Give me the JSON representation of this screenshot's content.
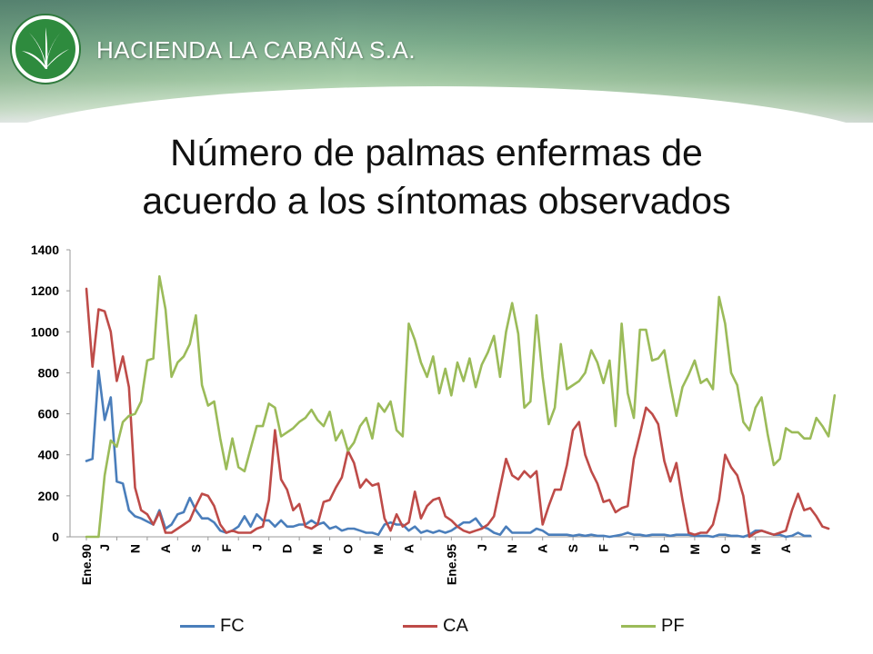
{
  "header": {
    "brand": "HACIENDA LA CABAÑA S.A.",
    "logo_icon": "palm-leaf-logo-icon"
  },
  "slide": {
    "title_line1": "Número de palmas enfermas de",
    "title_line2": "acuerdo a los síntomas observados"
  },
  "chart_data": {
    "type": "line",
    "title": "Número de palmas enfermas de acuerdo a los síntomas observados",
    "xlabel": "",
    "ylabel": "",
    "ylim": [
      0,
      1400
    ],
    "yticks": [
      0,
      200,
      400,
      600,
      800,
      1000,
      1200,
      1400
    ],
    "grid": false,
    "legend": "bottom",
    "x_tick_labels": [
      {
        "index": 0,
        "label": "Ene.90"
      },
      {
        "index": 3,
        "label": "J"
      },
      {
        "index": 8,
        "label": "N"
      },
      {
        "index": 13,
        "label": "A"
      },
      {
        "index": 18,
        "label": "S"
      },
      {
        "index": 23,
        "label": "F"
      },
      {
        "index": 28,
        "label": "J"
      },
      {
        "index": 33,
        "label": "D"
      },
      {
        "index": 38,
        "label": "M"
      },
      {
        "index": 43,
        "label": "O"
      },
      {
        "index": 48,
        "label": "M"
      },
      {
        "index": 53,
        "label": "A"
      },
      {
        "index": 60,
        "label": "Ene.95"
      },
      {
        "index": 65,
        "label": "J"
      },
      {
        "index": 70,
        "label": "N"
      },
      {
        "index": 75,
        "label": "A"
      },
      {
        "index": 80,
        "label": "S"
      },
      {
        "index": 85,
        "label": "F"
      },
      {
        "index": 90,
        "label": "J"
      },
      {
        "index": 95,
        "label": "D"
      },
      {
        "index": 100,
        "label": "M"
      },
      {
        "index": 105,
        "label": "O"
      },
      {
        "index": 110,
        "label": "M"
      },
      {
        "index": 115,
        "label": "A"
      }
    ],
    "series": [
      {
        "name": "FC",
        "color": "#4a7ebb",
        "values": [
          370,
          380,
          810,
          570,
          680,
          270,
          260,
          130,
          100,
          90,
          75,
          60,
          130,
          40,
          60,
          110,
          120,
          190,
          130,
          90,
          90,
          70,
          30,
          20,
          30,
          50,
          100,
          50,
          110,
          80,
          80,
          50,
          80,
          50,
          50,
          60,
          60,
          80,
          60,
          70,
          40,
          50,
          30,
          40,
          40,
          30,
          20,
          20,
          10,
          60,
          70,
          60,
          60,
          30,
          50,
          20,
          30,
          20,
          30,
          20,
          30,
          50,
          70,
          70,
          90,
          50,
          40,
          20,
          10,
          50,
          20,
          20,
          20,
          20,
          40,
          30,
          10,
          10,
          10,
          10,
          5,
          10,
          5,
          10,
          5,
          5,
          0,
          5,
          10,
          20,
          10,
          10,
          5,
          10,
          10,
          10,
          5,
          10,
          10,
          10,
          5,
          5,
          5,
          0,
          10,
          10,
          5,
          5,
          0,
          10,
          30,
          30,
          20,
          10,
          10,
          0,
          5,
          20,
          5,
          5
        ]
      },
      {
        "name": "CA",
        "color": "#be4b48",
        "values": [
          1210,
          830,
          1110,
          1100,
          1000,
          760,
          880,
          730,
          240,
          130,
          110,
          60,
          120,
          20,
          20,
          40,
          60,
          80,
          150,
          210,
          200,
          150,
          60,
          20,
          30,
          20,
          20,
          20,
          40,
          50,
          180,
          520,
          280,
          230,
          130,
          160,
          50,
          40,
          60,
          170,
          180,
          240,
          290,
          420,
          360,
          240,
          280,
          250,
          260,
          90,
          30,
          110,
          50,
          70,
          220,
          90,
          150,
          180,
          190,
          100,
          80,
          50,
          30,
          20,
          30,
          40,
          60,
          100,
          240,
          380,
          300,
          280,
          320,
          290,
          320,
          60,
          150,
          230,
          230,
          350,
          520,
          560,
          400,
          320,
          260,
          170,
          180,
          120,
          140,
          150,
          380,
          500,
          630,
          600,
          550,
          370,
          270,
          360,
          180,
          20,
          10,
          20,
          20,
          60,
          180,
          400,
          340,
          300,
          200,
          0,
          20,
          30,
          20,
          10,
          20,
          30,
          130,
          210,
          130,
          140,
          100,
          50,
          40
        ]
      },
      {
        "name": "PF",
        "color": "#9bbb59",
        "values": [
          0,
          0,
          0,
          300,
          470,
          440,
          560,
          590,
          600,
          660,
          860,
          870,
          1270,
          1110,
          780,
          850,
          880,
          940,
          1080,
          740,
          640,
          660,
          480,
          330,
          480,
          340,
          320,
          430,
          540,
          540,
          650,
          630,
          490,
          510,
          530,
          560,
          580,
          620,
          570,
          540,
          610,
          470,
          520,
          420,
          460,
          540,
          580,
          480,
          650,
          610,
          660,
          520,
          490,
          1040,
          960,
          850,
          780,
          880,
          700,
          820,
          690,
          850,
          760,
          870,
          730,
          840,
          900,
          980,
          780,
          1000,
          1140,
          990,
          630,
          660,
          1080,
          780,
          550,
          630,
          940,
          720,
          740,
          760,
          800,
          910,
          850,
          750,
          860,
          540,
          1040,
          700,
          580,
          1010,
          1010,
          860,
          870,
          910,
          740,
          590,
          730,
          790,
          860,
          750,
          770,
          720,
          1170,
          1040,
          800,
          740,
          560,
          520,
          630,
          680,
          500,
          350,
          380,
          530,
          510,
          510,
          480,
          480,
          580,
          540,
          490,
          690
        ]
      }
    ]
  }
}
